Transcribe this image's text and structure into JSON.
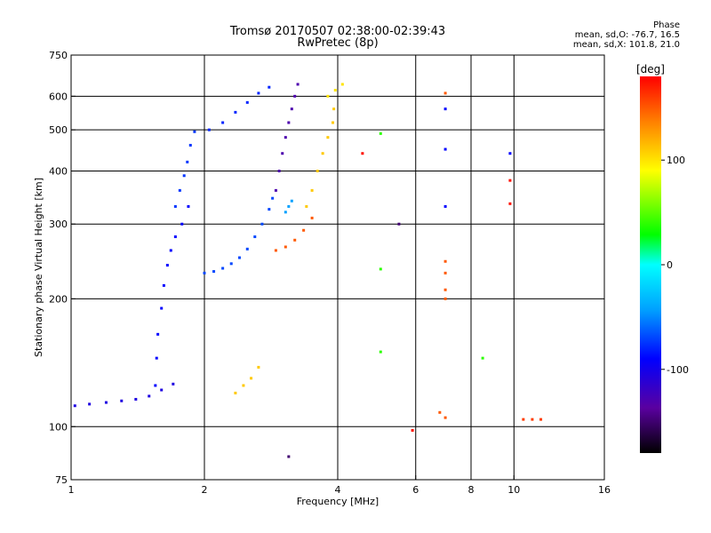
{
  "chart_data": {
    "type": "scatter",
    "title": "Tromsø 20170507 02:38:00-02:39:43",
    "subtitle": "RwPretec (8p)",
    "xlabel": "Frequency [MHz]",
    "ylabel": "Stationary phase Virtual Height [km]",
    "x_scale": "log",
    "y_scale": "log",
    "xlim": [
      1,
      16
    ],
    "ylim": [
      75,
      750
    ],
    "x_ticks": [
      1,
      2,
      4,
      6,
      8,
      10,
      16
    ],
    "y_ticks": [
      75,
      100,
      200,
      300,
      400,
      500,
      600,
      750
    ],
    "x_gridlines": [
      2,
      4,
      6,
      8,
      10
    ],
    "y_gridlines": [
      100,
      200,
      300,
      400,
      500,
      600
    ],
    "grid": true,
    "colorbar": {
      "label": "[deg]",
      "range": [
        -180,
        180
      ],
      "ticks": [
        100,
        0,
        -100
      ]
    },
    "phase_info": {
      "heading": "Phase",
      "line_o": "mean, sd,O: -76.7, 16.5",
      "line_x": "mean, sd,X: 101.8, 21.0"
    },
    "traces": [
      {
        "phase": -105,
        "points": [
          [
            1.02,
            112
          ],
          [
            1.1,
            113
          ],
          [
            1.2,
            114
          ],
          [
            1.3,
            115
          ],
          [
            1.4,
            116
          ],
          [
            1.5,
            118
          ],
          [
            1.6,
            122
          ],
          [
            1.7,
            126
          ]
        ]
      },
      {
        "phase": -90,
        "points": [
          [
            1.55,
            125
          ],
          [
            1.56,
            145
          ],
          [
            1.57,
            165
          ],
          [
            1.6,
            190
          ],
          [
            1.62,
            215
          ],
          [
            1.65,
            240
          ],
          [
            1.68,
            260
          ],
          [
            1.72,
            280
          ],
          [
            1.78,
            300
          ],
          [
            1.84,
            330
          ]
        ]
      },
      {
        "phase": -75,
        "points": [
          [
            1.72,
            330
          ],
          [
            1.76,
            360
          ],
          [
            1.8,
            390
          ],
          [
            1.83,
            420
          ],
          [
            1.86,
            460
          ],
          [
            1.9,
            495
          ]
        ]
      },
      {
        "phase": -70,
        "points": [
          [
            2.0,
            230
          ],
          [
            2.1,
            232
          ],
          [
            2.2,
            236
          ],
          [
            2.3,
            242
          ],
          [
            2.4,
            250
          ],
          [
            2.5,
            262
          ],
          [
            2.6,
            280
          ],
          [
            2.7,
            300
          ],
          [
            2.8,
            325
          ],
          [
            2.85,
            345
          ]
        ]
      },
      {
        "phase": -80,
        "points": [
          [
            2.05,
            500
          ],
          [
            2.2,
            520
          ],
          [
            2.35,
            550
          ],
          [
            2.5,
            580
          ],
          [
            2.65,
            610
          ],
          [
            2.8,
            630
          ]
        ]
      },
      {
        "phase": -130,
        "points": [
          [
            2.9,
            360
          ],
          [
            2.95,
            400
          ],
          [
            3.0,
            440
          ],
          [
            3.05,
            480
          ],
          [
            3.1,
            520
          ],
          [
            3.15,
            560
          ],
          [
            3.2,
            600
          ],
          [
            3.25,
            640
          ]
        ]
      },
      {
        "phase": -45,
        "points": [
          [
            3.05,
            320
          ],
          [
            3.1,
            330
          ],
          [
            3.15,
            340
          ]
        ]
      },
      {
        "phase": 150,
        "points": [
          [
            2.9,
            260
          ],
          [
            3.05,
            265
          ],
          [
            3.2,
            275
          ],
          [
            3.35,
            290
          ],
          [
            3.5,
            310
          ]
        ]
      },
      {
        "phase": 110,
        "points": [
          [
            3.4,
            330
          ],
          [
            3.5,
            360
          ],
          [
            3.6,
            400
          ],
          [
            3.7,
            440
          ],
          [
            3.8,
            480
          ],
          [
            3.9,
            520
          ],
          [
            3.92,
            560
          ]
        ]
      },
      {
        "phase": 100,
        "points": [
          [
            3.8,
            600
          ],
          [
            3.95,
            620
          ],
          [
            4.1,
            640
          ]
        ]
      },
      {
        "phase": 110,
        "points": [
          [
            2.35,
            120
          ],
          [
            2.45,
            125
          ],
          [
            2.55,
            130
          ],
          [
            2.65,
            138
          ]
        ]
      },
      {
        "phase": 160,
        "points": [
          [
            10.5,
            104
          ],
          [
            11.0,
            104
          ],
          [
            11.5,
            104
          ]
        ]
      },
      {
        "phase": 150,
        "points": [
          [
            7.0,
            610
          ],
          [
            7.0,
            245
          ],
          [
            7.0,
            230
          ],
          [
            7.0,
            210
          ],
          [
            7.0,
            200
          ],
          [
            6.8,
            108
          ],
          [
            7.0,
            105
          ]
        ]
      },
      {
        "phase": -90,
        "points": [
          [
            7.0,
            560
          ],
          [
            7.0,
            450
          ],
          [
            7.0,
            330
          ],
          [
            9.8,
            440
          ]
        ]
      },
      {
        "phase": 40,
        "points": [
          [
            5.0,
            490
          ],
          [
            5.0,
            235
          ],
          [
            5.0,
            150
          ],
          [
            8.5,
            145
          ]
        ]
      },
      {
        "phase": 175,
        "points": [
          [
            9.8,
            380
          ],
          [
            9.8,
            335
          ],
          [
            4.55,
            440
          ],
          [
            5.9,
            98
          ]
        ]
      },
      {
        "phase": -150,
        "points": [
          [
            5.5,
            300
          ],
          [
            3.1,
            85
          ]
        ]
      }
    ]
  }
}
